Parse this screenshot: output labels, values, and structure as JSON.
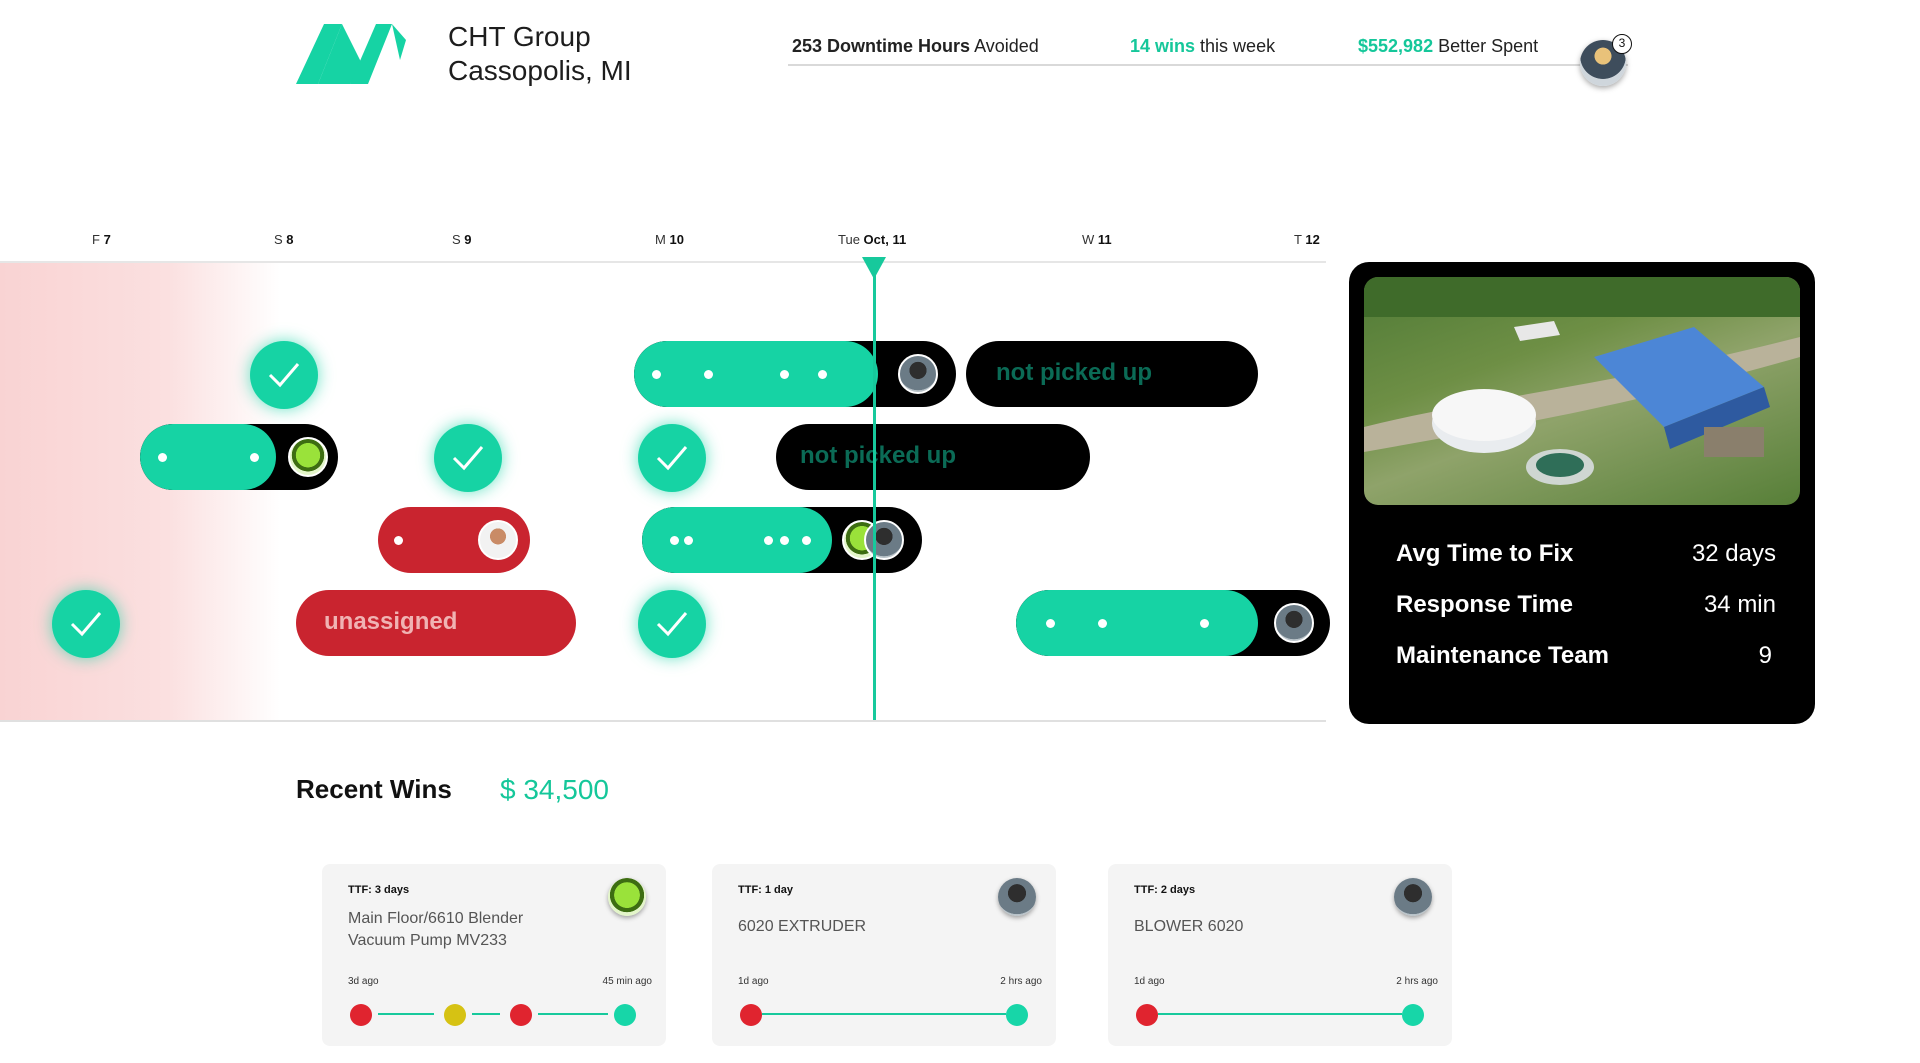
{
  "header": {
    "company_line1": "CHT Group",
    "company_line2": "Cassopolis, MI",
    "stats": {
      "downtime_value": "253 Downtime Hours",
      "downtime_suffix": "Avoided",
      "wins_value": "14 wins",
      "wins_suffix": "this week",
      "spent_value": "$552,982",
      "spent_suffix": "Better Spent"
    },
    "notification_count": "3",
    "accent_color": "#15c79a"
  },
  "timeline": {
    "days": [
      {
        "prefix": "F",
        "num": "7"
      },
      {
        "prefix": "S",
        "num": "8"
      },
      {
        "prefix": "S",
        "num": "9"
      },
      {
        "prefix": "M",
        "num": "10"
      },
      {
        "prefix": "Tue",
        "num": "Oct, 11"
      },
      {
        "prefix": "W",
        "num": "11"
      },
      {
        "prefix": "T",
        "num": "12"
      }
    ],
    "labels": {
      "not_picked_up_1": "not picked up",
      "not_picked_up_2": "not picked up",
      "unassigned": "unassigned"
    }
  },
  "site_card": {
    "stats": [
      {
        "label": "Avg Time to Fix",
        "value": "32 days"
      },
      {
        "label": "Response Time",
        "value": "34 min"
      },
      {
        "label": "Maintenance Team",
        "value": "9"
      }
    ]
  },
  "recent_wins": {
    "title": "Recent Wins",
    "amount": "$ 34,500",
    "cards": [
      {
        "ttf": "TTF: 3 days",
        "title": "Main Floor/6610 Blender Vacuum Pump MV233",
        "ago_start": "3d ago",
        "ago_end": "45 min ago"
      },
      {
        "ttf": "TTF: 1 day",
        "title": "6020 EXTRUDER",
        "ago_start": "1d ago",
        "ago_end": "2 hrs ago"
      },
      {
        "ttf": "TTF: 2 days",
        "title": "BLOWER 6020",
        "ago_start": "1d ago",
        "ago_end": "2 hrs ago"
      }
    ]
  }
}
